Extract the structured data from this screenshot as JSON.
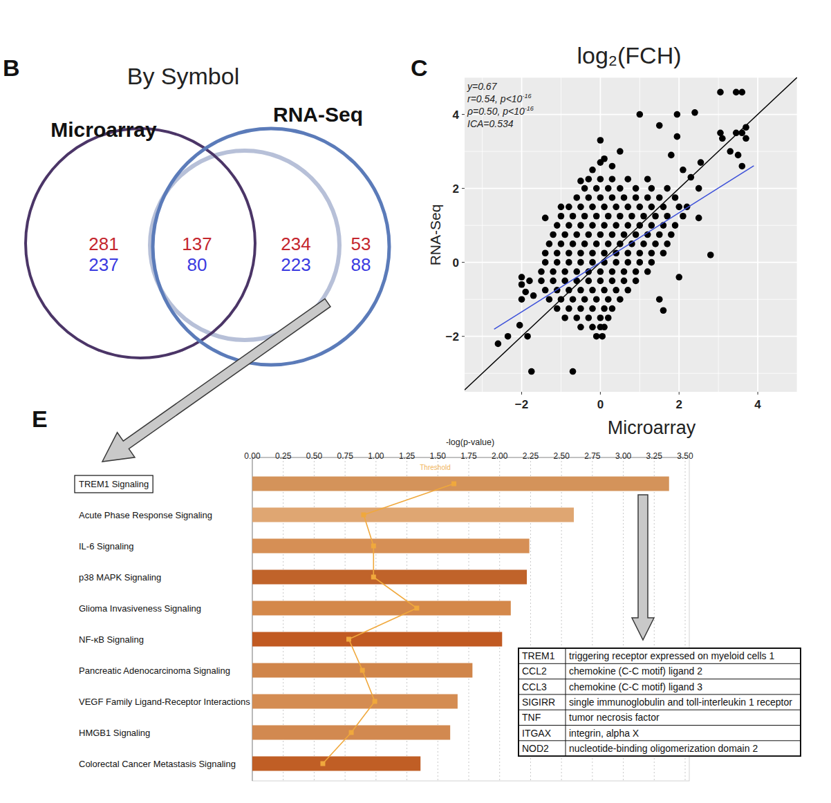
{
  "chart_data": [
    {
      "type": "venn",
      "panel": "B",
      "title": "By Symbol",
      "sets": [
        {
          "name": "Microarray",
          "color": "#4b3567"
        },
        {
          "name": "RNA-Seq",
          "color": "#5b7bb9"
        }
      ],
      "series": [
        {
          "color": "#c4262e",
          "values": [
            281,
            137,
            234,
            53
          ]
        },
        {
          "color": "#3a3ae0",
          "values": [
            237,
            80,
            223,
            88
          ]
        }
      ]
    },
    {
      "type": "scatter",
      "panel": "C",
      "title": "log₂(FCH)",
      "x_label": "Microarray",
      "y_label": "RNA-Seq",
      "annotations": [
        {
          "text": "y=0.67"
        },
        {
          "text": "r=0.54, p<10",
          "sup": "-16"
        },
        {
          "text": "ρ=0.50, p<10",
          "sup": "-16"
        },
        {
          "text": "ICA=0.534"
        }
      ],
      "xlim": [
        -3.45,
        5.0
      ],
      "ylim": [
        -3.5,
        5.0
      ],
      "xticks": [
        {
          "value": -2,
          "label": "−2"
        },
        0,
        2,
        4
      ],
      "yticks": [
        {
          "value": -2,
          "label": "−2"
        },
        0,
        2,
        4
      ],
      "grid": true,
      "series": [
        {
          "color": "#000000",
          "marker": "circle",
          "x": [
            -0.3,
            0.0,
            0.3,
            0.7,
            1.2,
            -0.4,
            -0.1,
            0.2,
            0.5,
            0.9,
            1.3,
            1.7,
            -0.6,
            -0.3,
            0,
            0.3,
            0.6,
            0.9,
            1.2,
            1.5,
            1.9,
            -0.8,
            -0.5,
            -0.2,
            0.1,
            0.4,
            0.7,
            1.0,
            1.3,
            1.6,
            2.0,
            -1.0,
            -0.7,
            -0.4,
            -0.1,
            0.2,
            0.5,
            0.8,
            1.1,
            1.4,
            1.7,
            2.1,
            -1.1,
            -0.8,
            -0.5,
            -0.2,
            0.1,
            0.4,
            0.7,
            1.0,
            1.3,
            1.6,
            1.9,
            -1.2,
            -0.9,
            -0.6,
            -0.3,
            0,
            0.3,
            0.6,
            0.9,
            1.2,
            1.5,
            1.8,
            -1.3,
            -1.0,
            -0.7,
            -0.4,
            -0.1,
            0.2,
            0.5,
            0.8,
            1.1,
            1.4,
            1.7,
            -1.4,
            -1.1,
            -0.8,
            -0.5,
            -0.2,
            0.1,
            0.4,
            0.7,
            1.0,
            1.3,
            1.6,
            -1.4,
            -1.1,
            -0.8,
            -0.5,
            -0.2,
            0.1,
            0.4,
            0.7,
            1.0,
            1.3,
            -1.5,
            -1.2,
            -0.9,
            -0.6,
            -0.3,
            0,
            0.3,
            0.6,
            0.9,
            1.2,
            -1.5,
            -1.2,
            -0.9,
            -0.6,
            -0.3,
            0,
            0.3,
            0.6,
            0.9,
            -1.4,
            -1.1,
            -0.8,
            -0.5,
            -0.2,
            0.1,
            0.4,
            0.7,
            -1.3,
            -1.0,
            -0.7,
            -0.4,
            -0.1,
            0.2,
            0.5,
            -1.1,
            -0.8,
            -0.5,
            -0.2,
            0.1,
            0.3,
            -0.9,
            -0.6,
            -0.3,
            0,
            0.2,
            -0.5,
            -0.2,
            0,
            0.1,
            -0.1,
            0.05,
            -2,
            -2,
            -1.9,
            -2,
            -1.8,
            -1.7,
            3.05,
            3.45,
            3.6,
            3.05,
            3.1,
            3.45,
            3.6,
            3.7,
            3.7,
            3.3,
            3.5,
            3.6,
            2.4,
            1.95,
            1.0,
            1.5,
            1.95,
            2.55,
            2.8,
            -2.6,
            -1.75,
            -0.7,
            -2.35,
            -1.85,
            -2.05,
            0.0,
            0.0,
            0.1,
            1.8,
            2.1,
            2.3,
            2.5,
            2.2,
            2.5,
            2.0,
            1.5,
            1.6,
            -1.4,
            -1.0,
            -0.5,
            -0.2,
            0.5,
            0.3
          ],
          "values": [
            2.25,
            2.25,
            2.25,
            2.25,
            2.25,
            2,
            2,
            2,
            2,
            2,
            2,
            2,
            1.75,
            1.75,
            1.75,
            1.75,
            1.75,
            1.75,
            1.75,
            1.75,
            1.75,
            1.5,
            1.5,
            1.5,
            1.5,
            1.5,
            1.5,
            1.5,
            1.5,
            1.5,
            1.5,
            1.25,
            1.25,
            1.25,
            1.25,
            1.25,
            1.25,
            1.25,
            1.25,
            1.25,
            1.25,
            1.25,
            1,
            1,
            1,
            1,
            1,
            1,
            1,
            1,
            1,
            1,
            1,
            0.75,
            0.75,
            0.75,
            0.75,
            0.75,
            0.75,
            0.75,
            0.75,
            0.75,
            0.75,
            0.75,
            0.5,
            0.5,
            0.5,
            0.5,
            0.5,
            0.5,
            0.5,
            0.5,
            0.5,
            0.5,
            0.5,
            0.25,
            0.25,
            0.25,
            0.25,
            0.25,
            0.25,
            0.25,
            0.25,
            0.25,
            0.25,
            0.25,
            0,
            0,
            0,
            0,
            0,
            0,
            0,
            0,
            0,
            0,
            -0.25,
            -0.25,
            -0.25,
            -0.25,
            -0.25,
            -0.25,
            -0.25,
            -0.25,
            -0.25,
            -0.25,
            -0.5,
            -0.5,
            -0.5,
            -0.5,
            -0.5,
            -0.5,
            -0.5,
            -0.5,
            -0.5,
            -0.75,
            -0.75,
            -0.75,
            -0.75,
            -0.75,
            -0.75,
            -0.75,
            -0.75,
            -1,
            -1,
            -1,
            -1,
            -1,
            -1,
            -1,
            -1.25,
            -1.25,
            -1.25,
            -1.25,
            -1.25,
            -1.25,
            -1.5,
            -1.5,
            -1.5,
            -1.5,
            -1.5,
            -1.75,
            -1.75,
            -1.75,
            -1.75,
            -2,
            -2,
            -0.4,
            -0.6,
            -0.8,
            -1.0,
            -0.5,
            -0.9,
            4.6,
            4.6,
            4.6,
            3.5,
            3.35,
            3.5,
            3.5,
            3.65,
            3.35,
            3.0,
            2.9,
            2.6,
            4.05,
            4.0,
            4.0,
            3.7,
            3.4,
            2.7,
            0.2,
            -2.2,
            -2.95,
            -2.95,
            -2.0,
            -2.0,
            -1.7,
            3.3,
            2.7,
            2.8,
            2.9,
            2.5,
            2.3,
            2.0,
            1.5,
            1.2,
            -0.4,
            -1.0,
            -1.3,
            1.2,
            1.5,
            2.2,
            2.5,
            3.0,
            2.6
          ]
        }
      ],
      "reference_lines": [
        {
          "slope": 1,
          "intercept": 0,
          "color": "#000000"
        },
        {
          "slope": 0.67,
          "intercept": 0,
          "color": "#3b4fd9",
          "x_range": [
            -2.7,
            3.9
          ]
        }
      ]
    },
    {
      "type": "bar",
      "panel": "E",
      "orientation": "horizontal",
      "x_label": "-log(p-value)",
      "categories": [
        "TREM1 Signaling",
        "Acute Phase Response Signaling",
        "IL-6 Signaling",
        "p38 MAPK Signaling",
        "Glioma Invasiveness Signaling",
        "NF-κB Signaling",
        "Pancreatic Adenocarcinoma Signaling",
        "VEGF Family Ligand-Receptor Interactions",
        "HMGB1 Signaling",
        "Colorectal Cancer Metastasis Signaling"
      ],
      "xlim": [
        0,
        3.5
      ],
      "xticks": [
        {
          "value": 0,
          "label": "0.00"
        },
        {
          "value": 0.25,
          "label": "0.25"
        },
        {
          "value": 0.5,
          "label": "0.50"
        },
        {
          "value": 0.75,
          "label": "0.75"
        },
        {
          "value": 1,
          "label": "1.00"
        },
        {
          "value": 1.25,
          "label": "1.25"
        },
        {
          "value": 1.5,
          "label": "1.50"
        },
        {
          "value": 1.75,
          "label": "1.75"
        },
        {
          "value": 2,
          "label": "2.00"
        },
        {
          "value": 2.25,
          "label": "2.25"
        },
        {
          "value": 2.5,
          "label": "2.50"
        },
        {
          "value": 2.75,
          "label": "2.75"
        },
        {
          "value": 3,
          "label": "3.00"
        },
        {
          "value": 3.25,
          "label": "3.25"
        },
        {
          "value": 3.5,
          "label": "3.50"
        }
      ],
      "grid": true,
      "threshold": {
        "value": 1.3,
        "label": "Threshold"
      },
      "series": [
        {
          "type": "bar",
          "colors": [
            "#d4935a",
            "#dfa672",
            "#d68f55",
            "#c0632a",
            "#d4884a",
            "#c15a22",
            "#d0854a",
            "#d48c52",
            "#d28950",
            "#c05e25"
          ],
          "values": [
            3.37,
            2.6,
            2.24,
            2.22,
            2.09,
            2.02,
            1.78,
            1.66,
            1.6,
            1.36
          ]
        },
        {
          "type": "line",
          "marker": "square",
          "color": "#f0a83c",
          "values": [
            1.63,
            0.9,
            0.98,
            0.98,
            1.33,
            0.78,
            0.89,
            0.99,
            0.8,
            0.57
          ]
        }
      ]
    }
  ],
  "gene_table": {
    "rows": [
      [
        "TREM1",
        "triggering receptor expressed on myeloid cells 1"
      ],
      [
        "CCL2",
        "chemokine (C-C motif) ligand 2"
      ],
      [
        "CCL3",
        "chemokine (C-C motif) ligand 3"
      ],
      [
        "SIGIRR",
        "single immunoglobulin and toll-interleukin 1 receptor"
      ],
      [
        "TNF",
        "tumor necrosis factor"
      ],
      [
        "ITGAX",
        "integrin, alpha X"
      ],
      [
        "NOD2",
        "nucleotide-binding oligomerization domain 2"
      ]
    ]
  }
}
